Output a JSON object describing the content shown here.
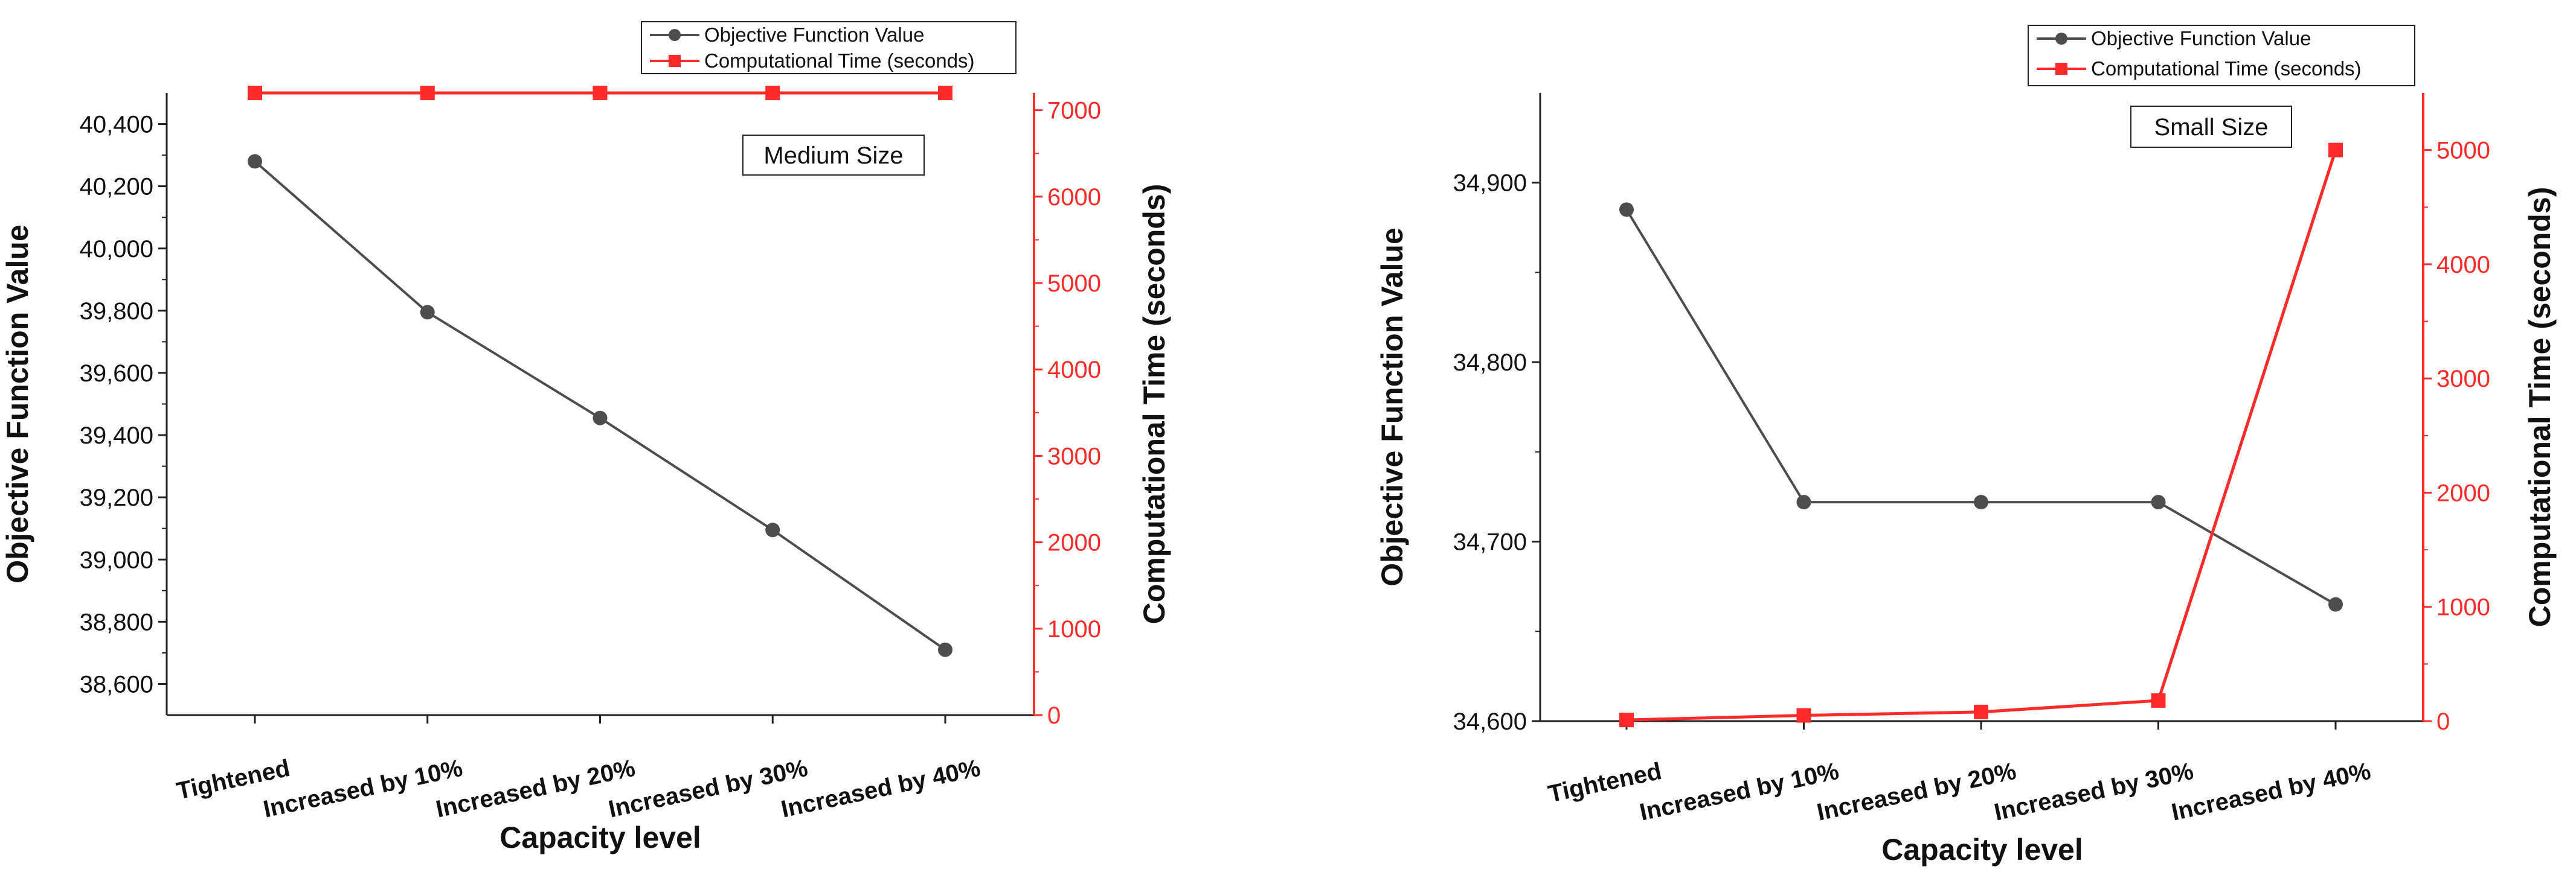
{
  "chart_data": [
    {
      "type": "line",
      "panel": "left",
      "annotation": "Medium Size",
      "categories": [
        "Tightened",
        "Increased by 10%",
        "Increased by 20%",
        "Increased by 30%",
        "Increased by 40%"
      ],
      "xlabel": "Capacity level",
      "ylabel": "Objective Function Value",
      "y2label": "Computational Time (seconds)",
      "ylim": [
        38500,
        40500
      ],
      "yticks": [
        38600,
        38800,
        39000,
        39200,
        39400,
        39600,
        39800,
        40000,
        40200,
        40400
      ],
      "ytick_labels": [
        "38,600",
        "38,800",
        "39,000",
        "39,200",
        "39,400",
        "39,600",
        "39,800",
        "40,000",
        "40,200",
        "40,400"
      ],
      "y2lim": [
        0,
        7200
      ],
      "y2ticks": [
        0,
        1000,
        2000,
        3000,
        4000,
        5000,
        6000,
        7000
      ],
      "y2tick_labels": [
        "0",
        "1000",
        "2000",
        "3000",
        "4000",
        "5000",
        "6000",
        "7000"
      ],
      "legend_position": "top",
      "series": [
        {
          "name": "Objective Function Value",
          "axis": "left",
          "color": "#4d4d4d",
          "marker": "circle",
          "values": [
            40280,
            39795,
            39455,
            39095,
            38710
          ]
        },
        {
          "name": "Computational Time (seconds)",
          "axis": "right",
          "color": "#ff2a2a",
          "marker": "square",
          "values": [
            7200,
            7200,
            7200,
            7200,
            7200
          ]
        }
      ]
    },
    {
      "type": "line",
      "panel": "right",
      "annotation": "Small Size",
      "categories": [
        "Tightened",
        "Increased by 10%",
        "Increased by 20%",
        "Increased by 30%",
        "Increased by 40%"
      ],
      "xlabel": "Capacity level",
      "ylabel": "Objective Function Value",
      "y2label": "Computational Time (seconds)",
      "ylim": [
        34600,
        34950
      ],
      "yticks": [
        34600,
        34700,
        34800,
        34900
      ],
      "ytick_labels": [
        "34,600",
        "34,700",
        "34,800",
        "34,900"
      ],
      "y2lim": [
        0,
        5500
      ],
      "y2ticks": [
        0,
        1000,
        2000,
        3000,
        4000,
        5000
      ],
      "y2tick_labels": [
        "0",
        "1000",
        "2000",
        "3000",
        "4000",
        "5000"
      ],
      "legend_position": "top",
      "series": [
        {
          "name": "Objective Function Value",
          "axis": "left",
          "color": "#4d4d4d",
          "marker": "circle",
          "values": [
            34885,
            34722,
            34722,
            34722,
            34665
          ]
        },
        {
          "name": "Computational Time (seconds)",
          "axis": "right",
          "color": "#ff2a2a",
          "marker": "square",
          "values": [
            10,
            50,
            80,
            180,
            5000
          ]
        }
      ]
    }
  ]
}
